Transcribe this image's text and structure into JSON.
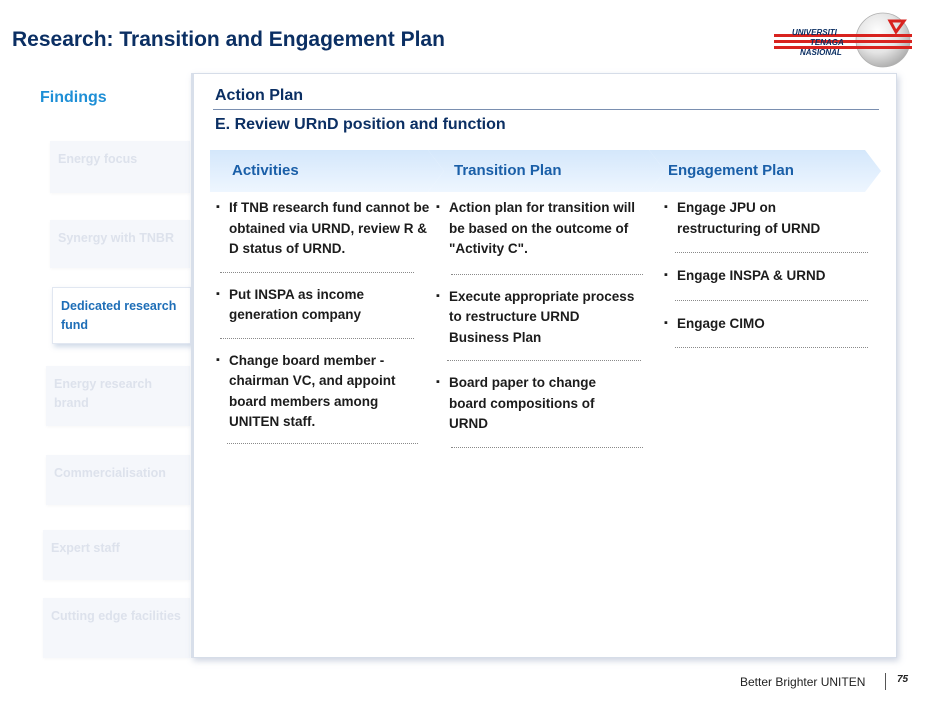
{
  "header": {
    "title": "Research: Transition and Engagement Plan",
    "logo_text": [
      "UNIVERSITI",
      "TENAGA",
      "NASIONAL"
    ]
  },
  "findings": {
    "heading": "Findings",
    "items": [
      {
        "label": "Energy focus",
        "active": false
      },
      {
        "label": "Synergy with TNBR",
        "active": false
      },
      {
        "label": "Dedicated research fund",
        "active": true
      },
      {
        "label": "Energy research brand",
        "active": false
      },
      {
        "label": "Commercialisation",
        "active": false
      },
      {
        "label": "Expert staff",
        "active": false
      },
      {
        "label": "Cutting edge facilities",
        "active": false
      }
    ]
  },
  "panel": {
    "title": "Action Plan",
    "subtitle": "E. Review URnD position and function",
    "columns": [
      {
        "header": "Activities",
        "items": [
          "If TNB research fund cannot be obtained via URND, review R & D status of URND.",
          "Put INSPA as income generation company",
          "Change board member - chairman VC, and appoint board members among UNITEN staff."
        ]
      },
      {
        "header": "Transition Plan",
        "items": [
          "Action plan for transition will be based on the outcome of \"Activity C\".",
          "Execute appropriate process to restructure URND Business Plan",
          "Board paper to change board compositions of URND"
        ]
      },
      {
        "header": "Engagement Plan",
        "items": [
          "Engage JPU on restructuring of URND",
          "Engage INSPA & URND",
          "Engage CIMO"
        ]
      }
    ]
  },
  "footer": {
    "tagline": "Better Brighter UNITEN",
    "page_number": "75"
  },
  "colors": {
    "title": "#0b2f63",
    "findings_heading": "#1e8fd6",
    "active_item": "#1e6eb7",
    "chevron_header": "#1a5fa8",
    "logo_red": "#d8231f"
  },
  "icons": [
    "uniten-logo-icon",
    "bullet-square-icon"
  ]
}
